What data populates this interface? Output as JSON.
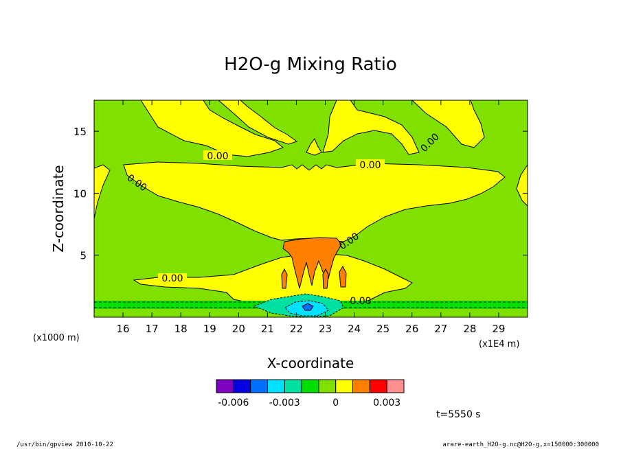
{
  "chart_data": {
    "type": "contour",
    "title": "H2O-g Mixing Ratio",
    "xlabel": "X-coordinate",
    "ylabel": "Z-coordinate",
    "x_unit_left": "(x1000 m)",
    "x_unit_right": "(x1E4 m)",
    "xlim": [
      15.0,
      30.0
    ],
    "ylim": [
      0.0,
      17.5
    ],
    "x_ticks": [
      16,
      17,
      18,
      19,
      20,
      21,
      22,
      23,
      24,
      25,
      26,
      27,
      28,
      29
    ],
    "y_ticks": [
      5,
      10,
      15
    ],
    "contour_labels": [
      "0.00",
      "0.00",
      "0.00",
      "0.00",
      "0.00",
      "0.00",
      "0.00"
    ],
    "colorbar": {
      "levels": [
        -0.007,
        -0.006,
        -0.005,
        -0.004,
        -0.003,
        -0.002,
        -0.001,
        0,
        0.001,
        0.002,
        0.003,
        0.004
      ],
      "colors": [
        "#7f00bf",
        "#0000e0",
        "#0070ff",
        "#00e0ff",
        "#00e0a0",
        "#00e000",
        "#80e000",
        "#ffff00",
        "#ff8000",
        "#ff0000",
        "#ff9090"
      ],
      "tick_labels": [
        "-0.006",
        "-0.003",
        "0",
        "0.003"
      ]
    },
    "time_label": "t=5550 s"
  },
  "footer": {
    "left": "/usr/bin/gpview  2010-10-22",
    "right": "arare-earth_H2O-g.nc@H2O-g,x=150000:300000"
  }
}
